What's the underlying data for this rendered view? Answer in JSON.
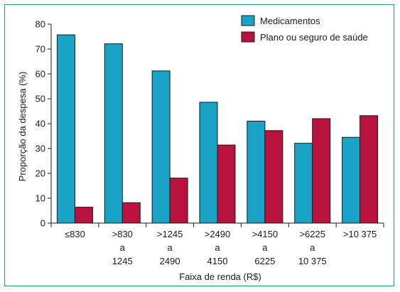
{
  "colors": {
    "frame_border": "#2a9a5f",
    "medicamentos": "#19a3c6",
    "plano": "#b8123f",
    "bar_stroke": "#1a1a1a",
    "axis": "#1a1a1a"
  },
  "chart_data": {
    "type": "bar",
    "xlabel": "Faixa de renda (R$)",
    "ylabel": "Proporção da despesa (%)",
    "ylim": [
      0,
      80
    ],
    "yticks": [
      0,
      10,
      20,
      30,
      40,
      50,
      60,
      70,
      80
    ],
    "grid": false,
    "legend_position": "top-right",
    "categories": [
      [
        "≤830"
      ],
      [
        ">830",
        "a",
        "1245"
      ],
      [
        ">1245",
        "a",
        "2490"
      ],
      [
        ">2490",
        "a",
        "4150"
      ],
      [
        ">4150",
        "a",
        "6225"
      ],
      [
        ">6225",
        "a",
        "10 375"
      ],
      [
        ">10 375"
      ]
    ],
    "series": [
      {
        "name": "Medicamentos",
        "color": "#19a3c6",
        "values": [
          75.7,
          72.1,
          61.2,
          48.6,
          41.0,
          32.1,
          34.5
        ]
      },
      {
        "name": "Plano ou seguro de saúde",
        "color": "#b8123f",
        "values": [
          6.4,
          8.2,
          18.1,
          31.4,
          37.2,
          42.0,
          43.2
        ]
      }
    ]
  }
}
